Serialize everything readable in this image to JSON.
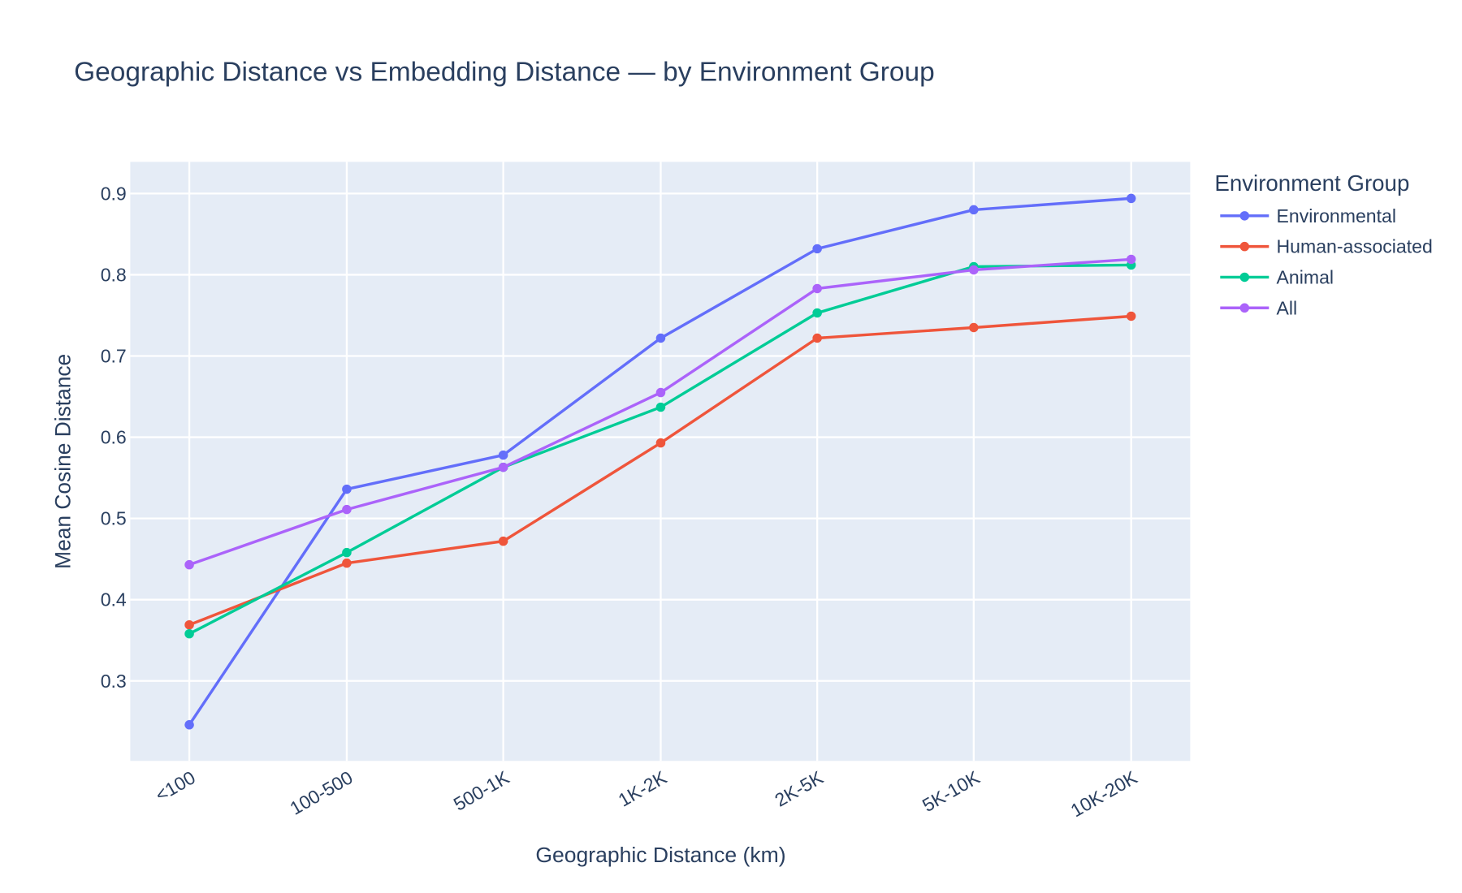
{
  "chart_data": {
    "type": "line",
    "title": "Geographic Distance vs Embedding Distance — by Environment Group",
    "xlabel": "Geographic Distance (km)",
    "ylabel": "Mean Cosine Distance",
    "categories": [
      "<100",
      "100-500",
      "500-1K",
      "1K-2K",
      "2K-5K",
      "5K-10K",
      "10K-20K"
    ],
    "ylim": [
      0.2015,
      0.939
    ],
    "yticks": [
      0.3,
      0.4,
      0.5,
      0.6,
      0.7,
      0.8,
      0.9
    ],
    "grid": true,
    "plot_bgcolor": "#e5ecf6",
    "legend": {
      "title": "Environment Group",
      "placement": "right"
    },
    "series": [
      {
        "name": "Environmental",
        "color": "#636efa",
        "values": [
          0.246,
          0.536,
          0.578,
          0.722,
          0.832,
          0.88,
          0.894
        ]
      },
      {
        "name": "Human-associated",
        "color": "#ef553b",
        "values": [
          0.369,
          0.445,
          0.472,
          0.593,
          0.722,
          0.735,
          0.749
        ]
      },
      {
        "name": "Animal",
        "color": "#00cc96",
        "values": [
          0.358,
          0.458,
          0.563,
          0.637,
          0.753,
          0.81,
          0.812
        ]
      },
      {
        "name": "All",
        "color": "#ab63fa",
        "values": [
          0.443,
          0.511,
          0.563,
          0.655,
          0.783,
          0.806,
          0.819
        ]
      }
    ]
  }
}
